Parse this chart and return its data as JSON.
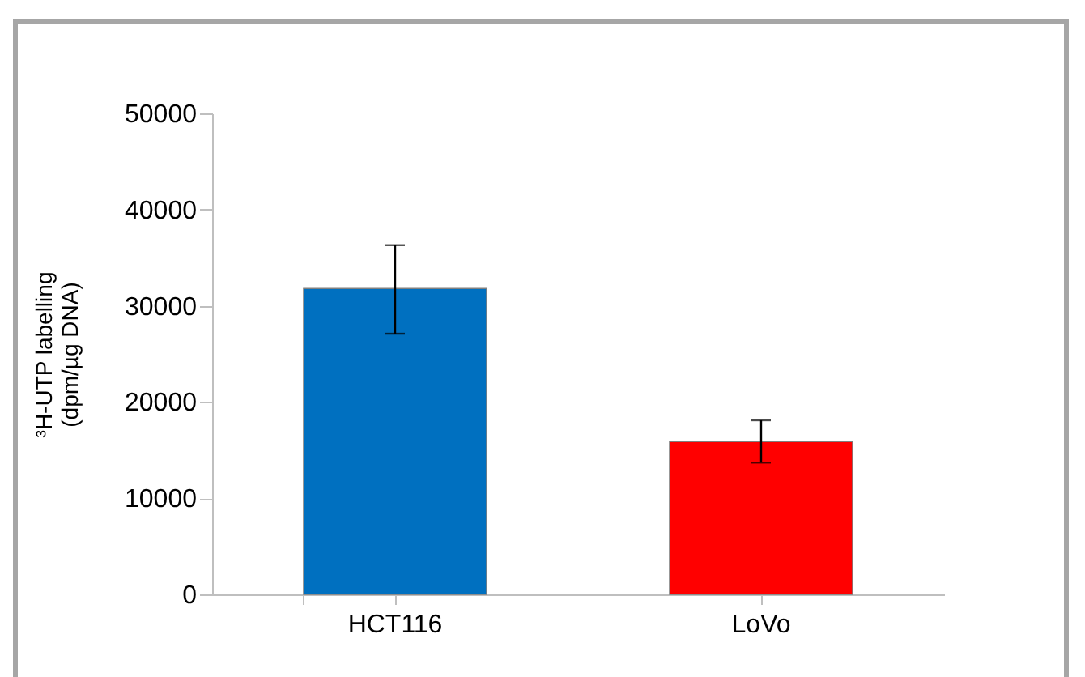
{
  "chart_data": {
    "type": "bar",
    "ylabel": "³H-UTP labelling\n(dpm/µg DNA)",
    "categories": [
      "HCT116",
      "LoVo"
    ],
    "values": [
      31800,
      15900
    ],
    "colors": [
      "#0070c0",
      "#ff0000"
    ],
    "errors": [
      [
        27100,
        36300
      ],
      [
        13700,
        18100
      ]
    ],
    "ylim": [
      0,
      50000
    ],
    "yticks": [
      0,
      10000,
      20000,
      30000,
      40000,
      50000
    ],
    "grid": false
  }
}
